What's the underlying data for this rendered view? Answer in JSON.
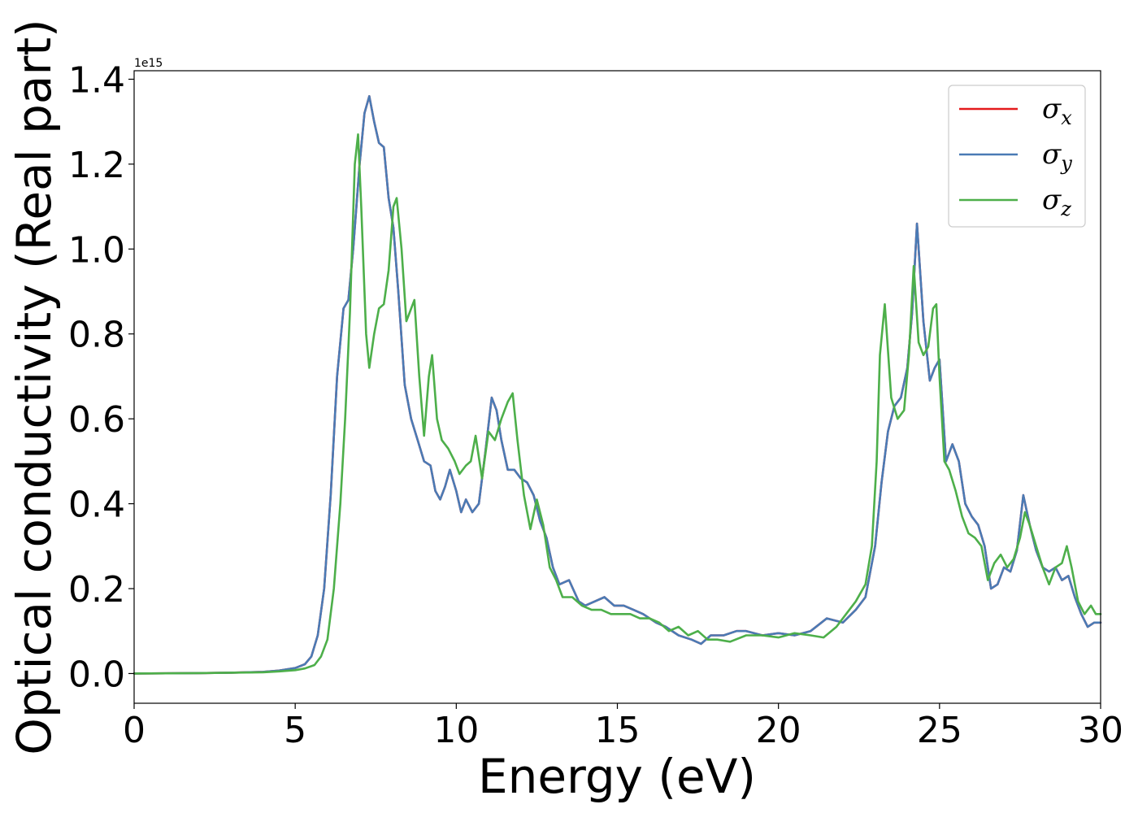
{
  "chart_data": {
    "type": "line",
    "title": "",
    "xlabel": "Energy (eV)",
    "ylabel": "Optical conductivity (Real part)",
    "y_offset_label": "1e15",
    "xlim": [
      0,
      30
    ],
    "ylim": [
      -0.07,
      1.42
    ],
    "xticks": [
      0,
      5,
      10,
      15,
      20,
      25,
      30
    ],
    "xtick_labels": [
      "0",
      "5",
      "10",
      "15",
      "20",
      "25",
      "30"
    ],
    "yticks": [
      0.0,
      0.2,
      0.4,
      0.6,
      0.8,
      1.0,
      1.2,
      1.4
    ],
    "ytick_labels": [
      "0.0",
      "0.2",
      "0.4",
      "0.6",
      "0.8",
      "1.0",
      "1.2",
      "1.4"
    ],
    "grid": false,
    "legend_position": "top-right",
    "series": [
      {
        "name": "σx",
        "symbol": "σ",
        "subscript": "x",
        "color": "#e41a1c",
        "x": [
          0,
          2,
          3,
          4,
          4.5,
          5,
          5.3,
          5.5,
          5.7,
          5.9,
          6.1,
          6.3,
          6.5,
          6.65,
          6.8,
          7.0,
          7.15,
          7.3,
          7.45,
          7.6,
          7.75,
          7.9,
          8.05,
          8.2,
          8.4,
          8.6,
          8.8,
          9.0,
          9.2,
          9.35,
          9.5,
          9.65,
          9.8,
          10.0,
          10.15,
          10.3,
          10.5,
          10.7,
          10.9,
          11.1,
          11.25,
          11.4,
          11.6,
          11.8,
          12.0,
          12.2,
          12.4,
          12.6,
          12.8,
          13.0,
          13.2,
          13.5,
          13.8,
          14.0,
          14.3,
          14.6,
          14.9,
          15.2,
          15.5,
          15.8,
          16.2,
          16.5,
          16.9,
          17.3,
          17.6,
          17.9,
          18.3,
          18.7,
          19.0,
          19.5,
          20.0,
          20.5,
          21.0,
          21.5,
          22.0,
          22.4,
          22.7,
          23.0,
          23.2,
          23.4,
          23.6,
          23.8,
          24.0,
          24.15,
          24.3,
          24.5,
          24.7,
          24.85,
          25.0,
          25.2,
          25.4,
          25.6,
          25.8,
          26.0,
          26.2,
          26.4,
          26.6,
          26.8,
          27.0,
          27.2,
          27.4,
          27.6,
          27.8,
          28.0,
          28.2,
          28.4,
          28.6,
          28.8,
          29.0,
          29.2,
          29.4,
          29.6,
          29.8,
          30.0
        ],
        "y": [
          0.0,
          0.001,
          0.002,
          0.004,
          0.007,
          0.013,
          0.022,
          0.04,
          0.09,
          0.2,
          0.42,
          0.7,
          0.86,
          0.88,
          1.0,
          1.2,
          1.32,
          1.36,
          1.3,
          1.25,
          1.24,
          1.12,
          1.05,
          0.9,
          0.68,
          0.6,
          0.55,
          0.5,
          0.49,
          0.43,
          0.41,
          0.44,
          0.48,
          0.43,
          0.38,
          0.41,
          0.38,
          0.4,
          0.52,
          0.65,
          0.62,
          0.55,
          0.48,
          0.48,
          0.46,
          0.45,
          0.42,
          0.36,
          0.32,
          0.25,
          0.21,
          0.22,
          0.17,
          0.16,
          0.17,
          0.18,
          0.16,
          0.16,
          0.15,
          0.14,
          0.12,
          0.11,
          0.09,
          0.08,
          0.07,
          0.09,
          0.09,
          0.1,
          0.1,
          0.09,
          0.095,
          0.09,
          0.1,
          0.13,
          0.12,
          0.15,
          0.18,
          0.3,
          0.45,
          0.57,
          0.63,
          0.65,
          0.72,
          0.85,
          1.06,
          0.83,
          0.69,
          0.72,
          0.74,
          0.5,
          0.54,
          0.5,
          0.4,
          0.37,
          0.35,
          0.3,
          0.2,
          0.21,
          0.25,
          0.24,
          0.29,
          0.42,
          0.35,
          0.29,
          0.25,
          0.24,
          0.25,
          0.22,
          0.23,
          0.18,
          0.14,
          0.11,
          0.12,
          0.12
        ]
      },
      {
        "name": "σy",
        "symbol": "σ",
        "subscript": "y",
        "color": "#4a7bb5",
        "x": [
          0,
          2,
          3,
          4,
          4.5,
          5,
          5.3,
          5.5,
          5.7,
          5.9,
          6.1,
          6.3,
          6.5,
          6.65,
          6.8,
          7.0,
          7.15,
          7.3,
          7.45,
          7.6,
          7.75,
          7.9,
          8.05,
          8.2,
          8.4,
          8.6,
          8.8,
          9.0,
          9.2,
          9.35,
          9.5,
          9.65,
          9.8,
          10.0,
          10.15,
          10.3,
          10.5,
          10.7,
          10.9,
          11.1,
          11.25,
          11.4,
          11.6,
          11.8,
          12.0,
          12.2,
          12.4,
          12.6,
          12.8,
          13.0,
          13.2,
          13.5,
          13.8,
          14.0,
          14.3,
          14.6,
          14.9,
          15.2,
          15.5,
          15.8,
          16.2,
          16.5,
          16.9,
          17.3,
          17.6,
          17.9,
          18.3,
          18.7,
          19.0,
          19.5,
          20.0,
          20.5,
          21.0,
          21.5,
          22.0,
          22.4,
          22.7,
          23.0,
          23.2,
          23.4,
          23.6,
          23.8,
          24.0,
          24.15,
          24.3,
          24.5,
          24.7,
          24.85,
          25.0,
          25.2,
          25.4,
          25.6,
          25.8,
          26.0,
          26.2,
          26.4,
          26.6,
          26.8,
          27.0,
          27.2,
          27.4,
          27.6,
          27.8,
          28.0,
          28.2,
          28.4,
          28.6,
          28.8,
          29.0,
          29.2,
          29.4,
          29.6,
          29.8,
          30.0
        ],
        "y": [
          0.0,
          0.001,
          0.002,
          0.004,
          0.007,
          0.013,
          0.022,
          0.04,
          0.09,
          0.2,
          0.42,
          0.7,
          0.86,
          0.88,
          1.0,
          1.2,
          1.32,
          1.36,
          1.3,
          1.25,
          1.24,
          1.12,
          1.05,
          0.9,
          0.68,
          0.6,
          0.55,
          0.5,
          0.49,
          0.43,
          0.41,
          0.44,
          0.48,
          0.43,
          0.38,
          0.41,
          0.38,
          0.4,
          0.52,
          0.65,
          0.62,
          0.55,
          0.48,
          0.48,
          0.46,
          0.45,
          0.42,
          0.36,
          0.32,
          0.25,
          0.21,
          0.22,
          0.17,
          0.16,
          0.17,
          0.18,
          0.16,
          0.16,
          0.15,
          0.14,
          0.12,
          0.11,
          0.09,
          0.08,
          0.07,
          0.09,
          0.09,
          0.1,
          0.1,
          0.09,
          0.095,
          0.09,
          0.1,
          0.13,
          0.12,
          0.15,
          0.18,
          0.3,
          0.45,
          0.57,
          0.63,
          0.65,
          0.72,
          0.85,
          1.06,
          0.83,
          0.69,
          0.72,
          0.74,
          0.5,
          0.54,
          0.5,
          0.4,
          0.37,
          0.35,
          0.3,
          0.2,
          0.21,
          0.25,
          0.24,
          0.29,
          0.42,
          0.35,
          0.29,
          0.25,
          0.24,
          0.25,
          0.22,
          0.23,
          0.18,
          0.14,
          0.11,
          0.12,
          0.12
        ]
      },
      {
        "name": "σz",
        "symbol": "σ",
        "subscript": "z",
        "color": "#4daf4a",
        "x": [
          0,
          2,
          3,
          4,
          4.5,
          5,
          5.3,
          5.6,
          5.8,
          6.0,
          6.2,
          6.4,
          6.55,
          6.7,
          6.85,
          6.95,
          7.05,
          7.2,
          7.3,
          7.45,
          7.6,
          7.75,
          7.9,
          8.05,
          8.15,
          8.3,
          8.45,
          8.55,
          8.7,
          8.85,
          9.0,
          9.15,
          9.25,
          9.4,
          9.55,
          9.75,
          9.95,
          10.1,
          10.3,
          10.45,
          10.6,
          10.8,
          11.0,
          11.2,
          11.4,
          11.6,
          11.75,
          11.9,
          12.1,
          12.3,
          12.5,
          12.7,
          12.9,
          13.1,
          13.3,
          13.6,
          13.9,
          14.2,
          14.5,
          14.8,
          15.1,
          15.4,
          15.7,
          16.0,
          16.3,
          16.6,
          16.9,
          17.2,
          17.5,
          17.8,
          18.1,
          18.5,
          19.0,
          19.5,
          20.0,
          20.5,
          21.0,
          21.4,
          21.8,
          22.1,
          22.4,
          22.7,
          22.9,
          23.05,
          23.15,
          23.3,
          23.5,
          23.7,
          23.9,
          24.05,
          24.2,
          24.35,
          24.5,
          24.65,
          24.8,
          24.9,
          25.0,
          25.15,
          25.3,
          25.5,
          25.7,
          25.9,
          26.1,
          26.3,
          26.5,
          26.7,
          26.9,
          27.1,
          27.3,
          27.5,
          27.65,
          27.8,
          28.0,
          28.2,
          28.4,
          28.6,
          28.8,
          28.95,
          29.1,
          29.3,
          29.5,
          29.7,
          29.85,
          30.0
        ],
        "y": [
          0.0,
          0.001,
          0.002,
          0.003,
          0.005,
          0.008,
          0.012,
          0.02,
          0.04,
          0.08,
          0.2,
          0.4,
          0.6,
          0.85,
          1.2,
          1.27,
          1.1,
          0.8,
          0.72,
          0.8,
          0.86,
          0.87,
          0.95,
          1.1,
          1.12,
          1.0,
          0.83,
          0.85,
          0.88,
          0.7,
          0.56,
          0.7,
          0.75,
          0.6,
          0.55,
          0.53,
          0.5,
          0.47,
          0.49,
          0.5,
          0.56,
          0.46,
          0.57,
          0.55,
          0.6,
          0.64,
          0.66,
          0.55,
          0.42,
          0.34,
          0.41,
          0.35,
          0.25,
          0.22,
          0.18,
          0.18,
          0.16,
          0.15,
          0.15,
          0.14,
          0.14,
          0.14,
          0.13,
          0.13,
          0.12,
          0.1,
          0.11,
          0.09,
          0.1,
          0.08,
          0.08,
          0.075,
          0.09,
          0.09,
          0.085,
          0.095,
          0.09,
          0.085,
          0.11,
          0.14,
          0.17,
          0.21,
          0.3,
          0.5,
          0.75,
          0.87,
          0.65,
          0.6,
          0.62,
          0.75,
          0.96,
          0.78,
          0.75,
          0.77,
          0.86,
          0.87,
          0.7,
          0.5,
          0.48,
          0.43,
          0.37,
          0.33,
          0.32,
          0.3,
          0.22,
          0.26,
          0.28,
          0.25,
          0.27,
          0.32,
          0.38,
          0.35,
          0.3,
          0.25,
          0.21,
          0.25,
          0.26,
          0.3,
          0.25,
          0.17,
          0.14,
          0.16,
          0.14,
          0.14
        ]
      }
    ]
  }
}
